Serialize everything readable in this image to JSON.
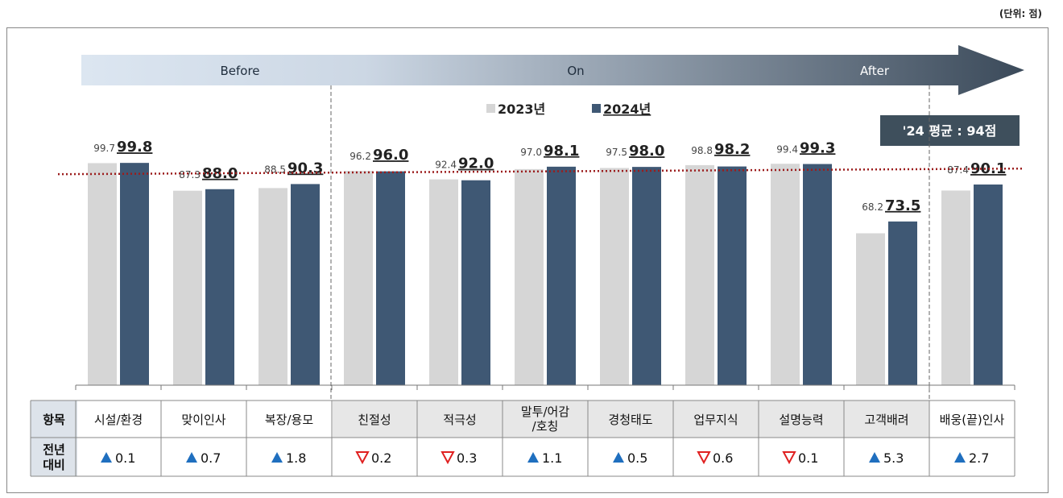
{
  "unit_label": "(단위: 점)",
  "phases": {
    "before": "Before",
    "on": "On",
    "after": "After"
  },
  "average_badge": "'24 평균 : 94점",
  "table": {
    "row_header_item": "항목",
    "row_header_change": [
      "전년",
      "대비"
    ]
  },
  "colors": {
    "series_2023": "#d6d6d6",
    "series_2024": "#3f5874",
    "avg_line": "#9b1c1c",
    "up": "#1f6fbf",
    "down": "#e02020",
    "badge": "#3e4f5c",
    "header_cell": "#dde3ea",
    "on_cell": "#e7e7e7"
  },
  "chart_data": {
    "type": "bar",
    "categories": [
      "시설/환경",
      "맞이인사",
      "복장/용모",
      "친절성",
      "적극성",
      "말투/어감\n/호칭",
      "경청태도",
      "업무지식",
      "설명능력",
      "고객배려",
      "배웅(끝)인사"
    ],
    "series": [
      {
        "name": "2023년",
        "values": [
          99.7,
          87.3,
          88.5,
          96.2,
          92.4,
          97.0,
          97.5,
          98.8,
          99.4,
          68.2,
          87.4
        ]
      },
      {
        "name": "2024년",
        "values": [
          99.8,
          88.0,
          90.3,
          96.0,
          92.0,
          98.1,
          98.0,
          98.2,
          99.3,
          73.5,
          90.1
        ]
      }
    ],
    "value_labels_2023": [
      "99.7",
      "87.3",
      "88.5",
      "96.2",
      "92.4",
      "97.0",
      "97.5",
      "98.8",
      "99.4",
      "68.2",
      "87.4"
    ],
    "value_labels_2024": [
      "99.8",
      "88.0",
      "90.3",
      "96.0",
      "92.0",
      "98.1",
      "98.0",
      "98.2",
      "99.3",
      "73.5",
      "90.1"
    ],
    "change": [
      {
        "dir": "up",
        "value": "0.1"
      },
      {
        "dir": "up",
        "value": "0.7"
      },
      {
        "dir": "up",
        "value": "1.8"
      },
      {
        "dir": "down",
        "value": "0.2"
      },
      {
        "dir": "down",
        "value": "0.3"
      },
      {
        "dir": "up",
        "value": "1.1"
      },
      {
        "dir": "up",
        "value": "0.5"
      },
      {
        "dir": "down",
        "value": "0.6"
      },
      {
        "dir": "down",
        "value": "0.1"
      },
      {
        "dir": "up",
        "value": "5.3"
      },
      {
        "dir": "up",
        "value": "2.7"
      }
    ],
    "average_2024": 94,
    "phase_groups": {
      "before": [
        0,
        2
      ],
      "on": [
        3,
        9
      ],
      "after": [
        10,
        10
      ]
    },
    "ylim": [
      0,
      100
    ],
    "legend_position": "top-center",
    "grid": false
  }
}
